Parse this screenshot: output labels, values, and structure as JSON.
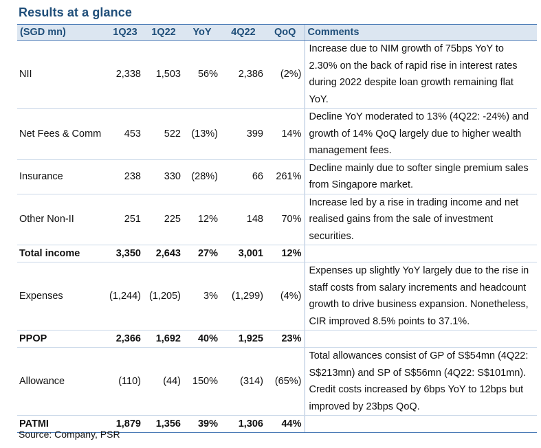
{
  "title": "Results at a glance",
  "headers": [
    "(SGD mn)",
    "1Q23",
    "1Q22",
    "YoY",
    "4Q22",
    "QoQ",
    "Comments"
  ],
  "rows": [
    {
      "label": "NII",
      "q123": "2,338",
      "q122": "1,503",
      "yoy": "56%",
      "q422": "2,386",
      "qoq": "(2%)",
      "comment": "Increase due to NIM growth of 75bps YoY to 2.30% on the back of rapid rise in interest rates during 2022 despite loan growth remaining flat YoY."
    },
    {
      "label": "Net Fees & Comm",
      "q123": "453",
      "q122": "522",
      "yoy": "(13%)",
      "q422": "399",
      "qoq": "14%",
      "comment": "Decline YoY moderated to 13% (4Q22: -24%) and growth of 14% QoQ largely due to higher wealth management fees."
    },
    {
      "label": "Insurance",
      "q123": "238",
      "q122": "330",
      "yoy": "(28%)",
      "q422": "66",
      "qoq": "261%",
      "comment": "Decline mainly due to softer single premium sales from Singapore market."
    },
    {
      "label": "Other Non-II",
      "q123": "251",
      "q122": "225",
      "yoy": "12%",
      "q422": "148",
      "qoq": "70%",
      "comment": "Increase led by a rise in trading income and net realised gains from the sale of investment securities."
    },
    {
      "label": "Total income",
      "q123": "3,350",
      "q122": "2,643",
      "yoy": "27%",
      "q422": "3,001",
      "qoq": "12%",
      "comment": ""
    },
    {
      "label": "Expenses",
      "q123": "(1,244)",
      "q122": "(1,205)",
      "yoy": "3%",
      "q422": "(1,299)",
      "qoq": "(4%)",
      "comment": "Expenses up slightly YoY largely due to the rise in staff costs from salary increments and headcount growth to drive business expansion. Nonetheless, CIR improved 8.5% points to 37.1%."
    },
    {
      "label": "PPOP",
      "q123": "2,366",
      "q122": "1,692",
      "yoy": "40%",
      "q422": "1,925",
      "qoq": "23%",
      "comment": ""
    },
    {
      "label": "Allowance",
      "q123": "(110)",
      "q122": "(44)",
      "yoy": "150%",
      "q422": "(314)",
      "qoq": "(65%)",
      "comment": "Total allowances consist of GP of S$54mn (4Q22: S$213mn) and SP of S$56mn (4Q22: S$101mn). Credit costs increased by 6bps YoY to 12bps but improved by 23bps QoQ."
    },
    {
      "label": "PATMI",
      "q123": "1,879",
      "q122": "1,356",
      "yoy": "39%",
      "q422": "1,306",
      "qoq": "44%",
      "comment": ""
    }
  ],
  "source": "Source: Company, PSR"
}
